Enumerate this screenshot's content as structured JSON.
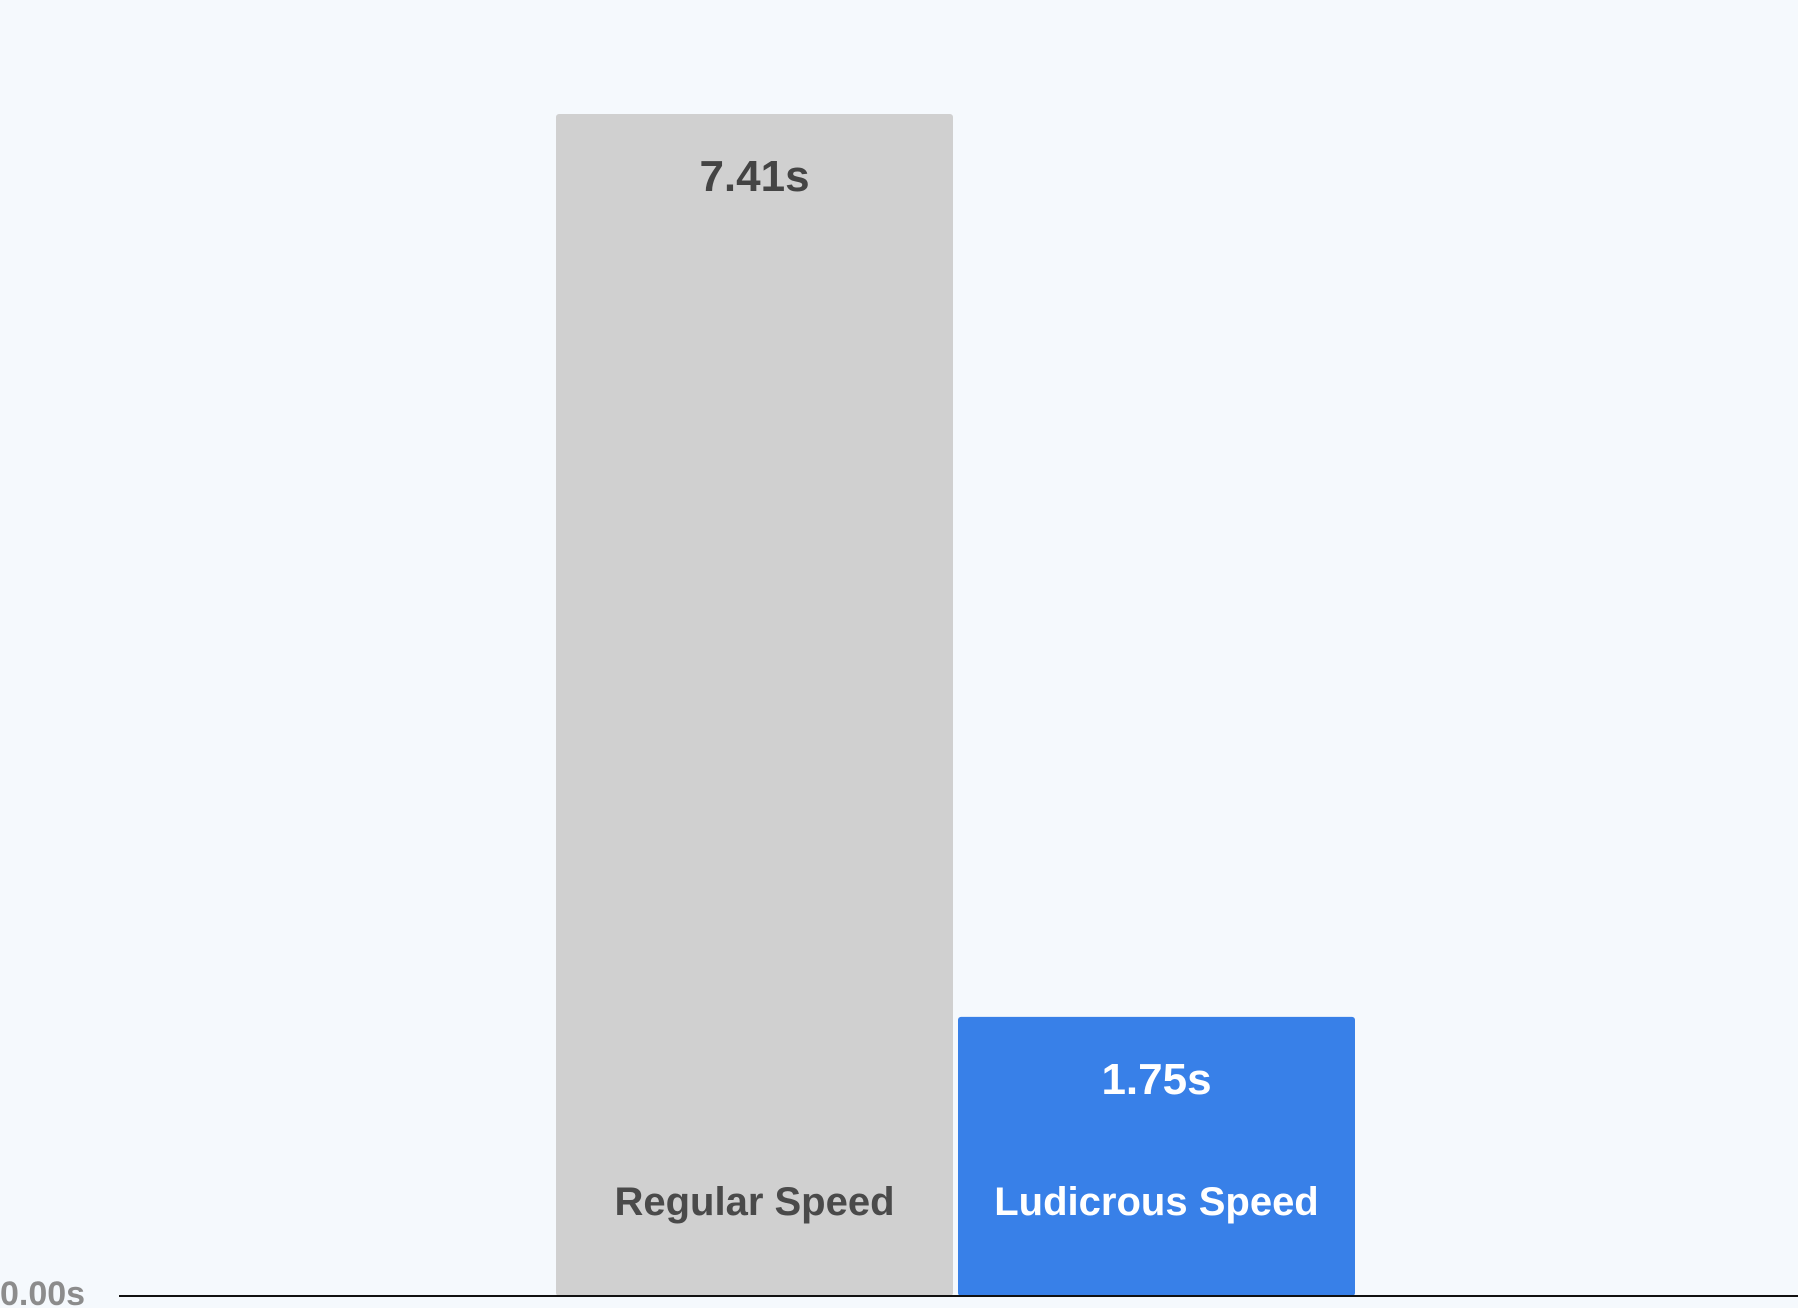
{
  "chart_data": {
    "type": "bar",
    "title": "",
    "xlabel": "",
    "ylabel": "",
    "unit": "s",
    "ylim": [
      0,
      7.41
    ],
    "grid": false,
    "categories": [
      "Regular Speed",
      "Ludicrous Speed"
    ],
    "values": [
      7.41,
      1.75
    ],
    "value_labels": [
      "7.41s",
      "1.75s"
    ],
    "y_ticks": [
      0
    ],
    "y_tick_labels": [
      "0.00s"
    ],
    "colors": [
      "#d0d0d0",
      "#3880e8"
    ],
    "value_text_colors": [
      "#444444",
      "#ffffff"
    ],
    "label_text_colors": [
      "#4a4a4a",
      "#ffffff"
    ],
    "axis_color": "#111111",
    "tick_color": "#8c8c8c",
    "background": "#f5f9fd"
  }
}
